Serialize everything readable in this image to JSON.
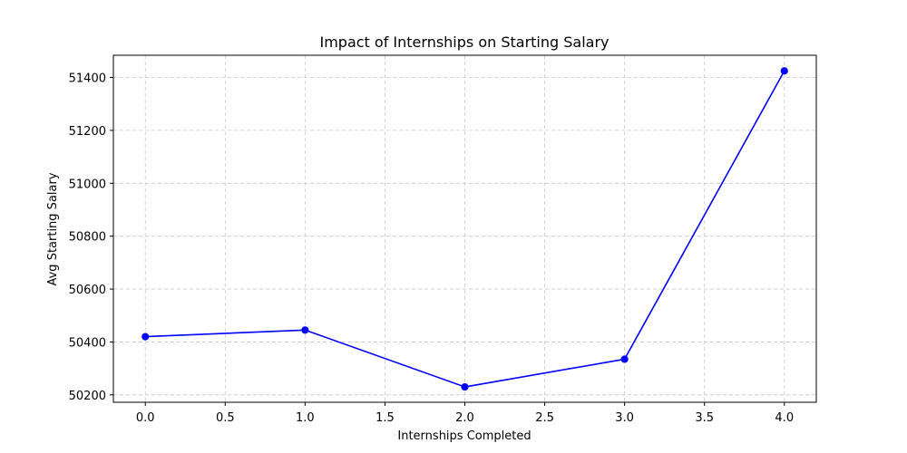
{
  "chart_data": {
    "type": "line",
    "title": "Impact of Internships on Starting Salary",
    "xlabel": "Internships Completed",
    "ylabel": "Avg Starting Salary",
    "x": [
      0,
      1,
      2,
      3,
      4
    ],
    "series": [
      {
        "values": [
          50420,
          50445,
          50230,
          50335,
          51425
        ],
        "color": "#0000ff",
        "marker": "circle"
      }
    ],
    "xlim": [
      -0.2,
      4.2
    ],
    "ylim": [
      50172,
      51484
    ],
    "xticks": [
      "0.0",
      "0.5",
      "1.0",
      "1.5",
      "2.0",
      "2.5",
      "3.0",
      "3.5",
      "4.0"
    ],
    "yticks": [
      "50200",
      "50400",
      "50600",
      "50800",
      "51000",
      "51200",
      "51400"
    ],
    "grid": true,
    "grid_style": "dashed",
    "grid_color": "#c8c8c8"
  }
}
